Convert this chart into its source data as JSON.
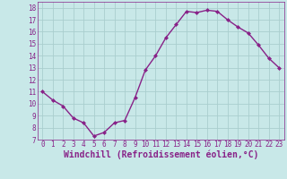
{
  "x": [
    0,
    1,
    2,
    3,
    4,
    5,
    6,
    7,
    8,
    9,
    10,
    11,
    12,
    13,
    14,
    15,
    16,
    17,
    18,
    19,
    20,
    21,
    22,
    23
  ],
  "y": [
    11,
    10.3,
    9.8,
    8.8,
    8.4,
    7.3,
    7.6,
    8.4,
    8.6,
    10.5,
    12.8,
    14.0,
    15.5,
    16.6,
    17.7,
    17.6,
    17.8,
    17.7,
    17.0,
    16.4,
    15.9,
    14.9,
    13.8,
    13.0
  ],
  "line_color": "#882288",
  "marker": "D",
  "marker_size": 2,
  "bg_color": "#c8e8e8",
  "grid_color": "#aacece",
  "xlabel": "Windchill (Refroidissement éolien,°C)",
  "xlabel_color": "#882288",
  "tick_color": "#882288",
  "xlim": [
    -0.5,
    23.5
  ],
  "ylim": [
    7,
    18.5
  ],
  "yticks": [
    7,
    8,
    9,
    10,
    11,
    12,
    13,
    14,
    15,
    16,
    17,
    18
  ],
  "xticks": [
    0,
    1,
    2,
    3,
    4,
    5,
    6,
    7,
    8,
    9,
    10,
    11,
    12,
    13,
    14,
    15,
    16,
    17,
    18,
    19,
    20,
    21,
    22,
    23
  ],
  "tick_fontsize": 5.5,
  "xlabel_fontsize": 7,
  "line_width": 1.0
}
